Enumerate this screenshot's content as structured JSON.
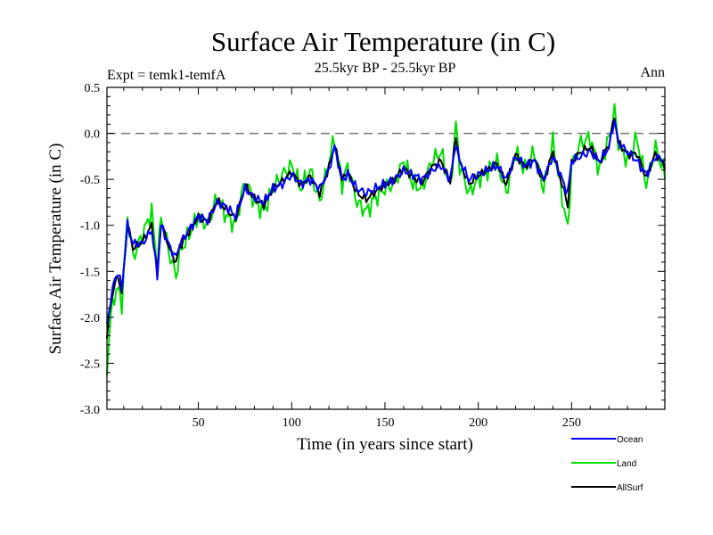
{
  "chart_data": {
    "type": "line",
    "title": "Surface Air Temperature (in C)",
    "subtitle": "25.5kyr BP - 25.5kyr BP",
    "experiment": "Expt = temk1-temfA",
    "period": "Ann",
    "xlabel": "Time (in years since start)",
    "ylabel": "Surface Air Temperature (in C)",
    "xlim": [
      1,
      300
    ],
    "ylim": [
      -3.0,
      0.5
    ],
    "x_ticks": [
      50,
      100,
      150,
      200,
      250
    ],
    "x_tick_labels": [
      "50",
      "100",
      "150",
      "200",
      "250"
    ],
    "y_ticks": [
      0.5,
      0.0,
      -0.5,
      -1.0,
      -1.5,
      -2.0,
      -2.5,
      -3.0
    ],
    "y_tick_labels": [
      "0.5",
      "0.0",
      "-0.5",
      "-1.0",
      "-1.5",
      "-2.0",
      "-2.5",
      "-3.0"
    ],
    "reference_line": 0.0,
    "legend_position": "bottom-right",
    "series": [
      {
        "name": "Ocean",
        "color": "#0000ff",
        "anchor_x": [
          1,
          3,
          5,
          7,
          9,
          12,
          15,
          20,
          25,
          28,
          30,
          35,
          38,
          40,
          45,
          50,
          55,
          60,
          65,
          70,
          75,
          80,
          85,
          90,
          95,
          100,
          105,
          110,
          115,
          120,
          123,
          127,
          130,
          135,
          140,
          145,
          150,
          155,
          160,
          165,
          170,
          175,
          180,
          185,
          188,
          190,
          195,
          200,
          205,
          210,
          215,
          220,
          225,
          230,
          235,
          240,
          245,
          248,
          250,
          255,
          260,
          265,
          270,
          273,
          275,
          280,
          285,
          290,
          295,
          300
        ],
        "anchor_y": [
          -2.1,
          -1.8,
          -1.6,
          -1.5,
          -1.7,
          -1.0,
          -1.2,
          -1.2,
          -1.05,
          -1.55,
          -1.0,
          -1.25,
          -1.35,
          -1.2,
          -1.05,
          -0.9,
          -0.95,
          -0.75,
          -0.8,
          -0.9,
          -0.6,
          -0.7,
          -0.75,
          -0.6,
          -0.55,
          -0.45,
          -0.55,
          -0.5,
          -0.6,
          -0.4,
          -0.15,
          -0.5,
          -0.45,
          -0.6,
          -0.65,
          -0.6,
          -0.55,
          -0.5,
          -0.4,
          -0.45,
          -0.5,
          -0.4,
          -0.35,
          -0.5,
          -0.1,
          -0.3,
          -0.5,
          -0.45,
          -0.4,
          -0.35,
          -0.5,
          -0.25,
          -0.35,
          -0.3,
          -0.5,
          -0.25,
          -0.5,
          -0.65,
          -0.3,
          -0.25,
          -0.2,
          -0.3,
          -0.15,
          0.15,
          -0.1,
          -0.2,
          -0.3,
          -0.45,
          -0.25,
          -0.3
        ]
      },
      {
        "name": "Land",
        "color": "#00dd00",
        "anchor_x": [
          1,
          3,
          5,
          7,
          9,
          12,
          15,
          20,
          25,
          28,
          30,
          35,
          38,
          40,
          45,
          50,
          55,
          60,
          65,
          70,
          75,
          80,
          85,
          90,
          95,
          100,
          105,
          110,
          115,
          120,
          123,
          127,
          130,
          135,
          140,
          145,
          150,
          155,
          160,
          165,
          170,
          175,
          180,
          185,
          188,
          190,
          195,
          200,
          205,
          210,
          215,
          220,
          225,
          230,
          235,
          240,
          245,
          248,
          250,
          255,
          260,
          265,
          270,
          273,
          275,
          280,
          285,
          290,
          295,
          300
        ],
        "anchor_y": [
          -2.55,
          -2.0,
          -1.75,
          -1.7,
          -1.85,
          -0.9,
          -1.35,
          -1.1,
          -0.85,
          -1.45,
          -0.9,
          -1.35,
          -1.55,
          -1.3,
          -1.1,
          -0.9,
          -1.0,
          -0.7,
          -0.9,
          -1.0,
          -0.5,
          -0.75,
          -0.85,
          -0.6,
          -0.45,
          -0.35,
          -0.6,
          -0.4,
          -0.75,
          -0.3,
          -0.05,
          -0.55,
          -0.35,
          -0.75,
          -0.85,
          -0.7,
          -0.6,
          -0.55,
          -0.3,
          -0.55,
          -0.6,
          -0.3,
          -0.2,
          -0.6,
          0.1,
          -0.35,
          -0.65,
          -0.5,
          -0.4,
          -0.3,
          -0.65,
          -0.2,
          -0.4,
          -0.2,
          -0.6,
          -0.1,
          -0.7,
          -1.05,
          -0.35,
          -0.1,
          -0.05,
          -0.4,
          -0.05,
          0.25,
          -0.1,
          -0.3,
          -0.05,
          -0.55,
          -0.15,
          -0.45
        ]
      },
      {
        "name": "AllSurf",
        "color": "#000000",
        "anchor_x": [
          1,
          3,
          5,
          7,
          9,
          12,
          15,
          20,
          25,
          28,
          30,
          35,
          38,
          40,
          45,
          50,
          55,
          60,
          65,
          70,
          75,
          80,
          85,
          90,
          95,
          100,
          105,
          110,
          115,
          120,
          123,
          127,
          130,
          135,
          140,
          145,
          150,
          155,
          160,
          165,
          170,
          175,
          180,
          185,
          188,
          190,
          195,
          200,
          205,
          210,
          215,
          220,
          225,
          230,
          235,
          240,
          245,
          248,
          250,
          255,
          260,
          265,
          270,
          273,
          275,
          280,
          285,
          290,
          295,
          300
        ],
        "anchor_y": [
          -2.2,
          -1.85,
          -1.65,
          -1.55,
          -1.75,
          -0.98,
          -1.25,
          -1.18,
          -1.0,
          -1.52,
          -0.97,
          -1.28,
          -1.4,
          -1.23,
          -1.07,
          -0.9,
          -0.97,
          -0.73,
          -0.83,
          -0.93,
          -0.57,
          -0.71,
          -0.78,
          -0.6,
          -0.52,
          -0.42,
          -0.56,
          -0.47,
          -0.65,
          -0.37,
          -0.12,
          -0.51,
          -0.42,
          -0.65,
          -0.72,
          -0.63,
          -0.56,
          -0.51,
          -0.37,
          -0.48,
          -0.53,
          -0.37,
          -0.3,
          -0.53,
          -0.04,
          -0.31,
          -0.55,
          -0.46,
          -0.4,
          -0.33,
          -0.55,
          -0.23,
          -0.36,
          -0.27,
          -0.53,
          -0.2,
          -0.56,
          -0.78,
          -0.31,
          -0.2,
          -0.15,
          -0.33,
          -0.12,
          0.18,
          -0.1,
          -0.23,
          -0.22,
          -0.48,
          -0.22,
          -0.35
        ]
      }
    ]
  }
}
